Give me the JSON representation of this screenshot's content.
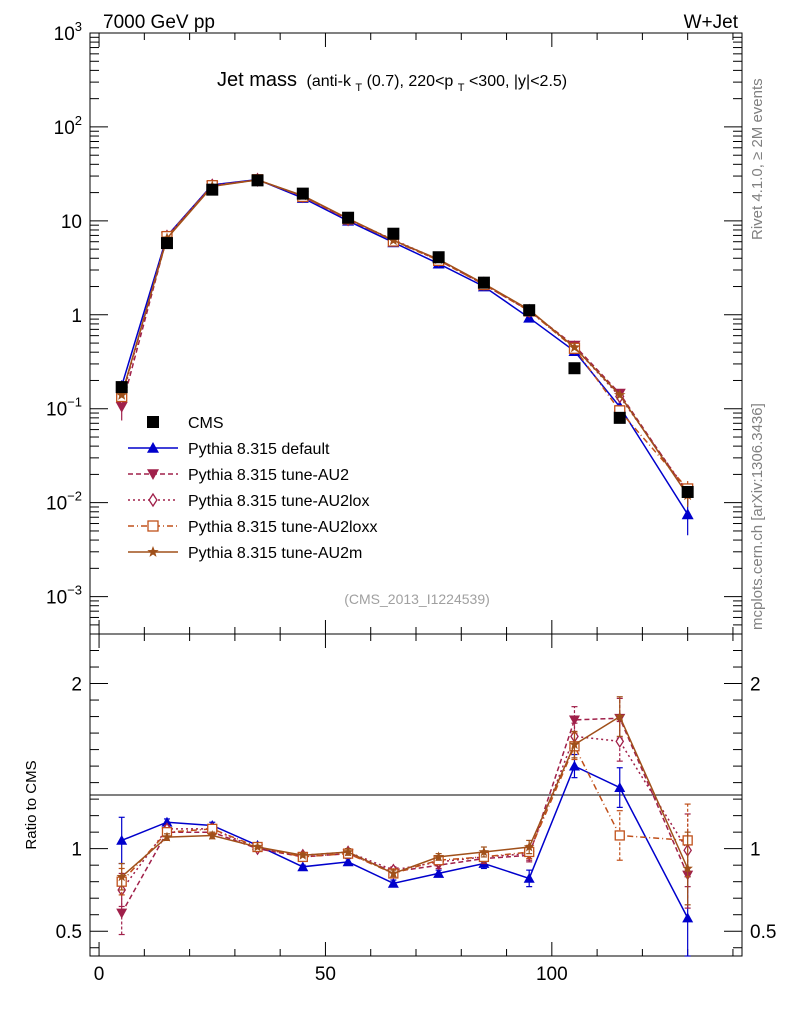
{
  "header": {
    "energy_label": "7000 GeV pp",
    "process_label": "W+Jet"
  },
  "side_labels": {
    "rivet": "Rivet 4.1.0, ≥ 2M events",
    "mcplots": "mcplots.cern.ch [arXiv:1306.3436]"
  },
  "chart_data": {
    "type": "scatter",
    "title": {
      "main": "Jet mass",
      "sub_before_kt": "(anti-k",
      "kt_sub": "T",
      "sub_mid": "(0.7), 220<p",
      "pt_sub": "T",
      "sub_after": "<300, |y|<2.5)"
    },
    "analysis_label": "(CMS_2013_I1224539)",
    "xlabel": "",
    "ylabel_ratio": "Ratio to CMS",
    "xlim": [
      -2,
      142
    ],
    "ylim_main": [
      0.0004,
      1000
    ],
    "ylog": true,
    "ylim_ratio": [
      0.35,
      2.3
    ],
    "x_ticks": [
      {
        "value": 0,
        "label": "0"
      },
      {
        "value": 50,
        "label": "50"
      },
      {
        "value": 100,
        "label": "100"
      }
    ],
    "y_ticks_main": [
      {
        "value": 1000,
        "base": "10",
        "exp": "3"
      },
      {
        "value": 100,
        "base": "10",
        "exp": "2"
      },
      {
        "value": 10,
        "base": "10",
        "exp": ""
      },
      {
        "value": 1,
        "base": "1",
        "exp": ""
      },
      {
        "value": 0.1,
        "base": "10",
        "exp": "−1"
      },
      {
        "value": 0.01,
        "base": "10",
        "exp": "−2"
      },
      {
        "value": 0.001,
        "base": "10",
        "exp": "−3"
      }
    ],
    "y_ticks_ratio": [
      {
        "value": 2,
        "label": "2"
      },
      {
        "value": 1,
        "label": "1"
      },
      {
        "value": 0.5,
        "label": "0.5"
      }
    ],
    "x": [
      5,
      15,
      25,
      35,
      45,
      55,
      65,
      75,
      85,
      95,
      105,
      115,
      130
    ],
    "legend_position": "left",
    "series": [
      {
        "name": "CMS",
        "color": "#000000",
        "marker": "square",
        "dash": "",
        "is_data": true,
        "values": [
          0.17,
          5.8,
          21.5,
          27,
          19.5,
          10.8,
          7.3,
          4.1,
          2.2,
          1.12,
          0.27,
          0.08,
          0.013
        ]
      },
      {
        "name": "Pythia 8.315 default",
        "color": "#0000cc",
        "marker": "triangle-up",
        "dash": "",
        "values": [
          0.175,
          6.9,
          24.2,
          27.5,
          17.5,
          10.0,
          5.9,
          3.5,
          2.0,
          0.93,
          0.41,
          0.105,
          0.0075
        ],
        "errors_main": [
          0,
          0,
          0,
          0,
          0,
          0,
          0,
          0,
          0,
          0,
          0,
          0,
          0.003
        ],
        "ratio": [
          1.05,
          1.16,
          1.14,
          1.02,
          0.89,
          0.92,
          0.79,
          0.85,
          0.91,
          0.82,
          1.5,
          1.37,
          0.58
        ],
        "ratio_err": [
          0.14,
          0.02,
          0.02,
          0.01,
          0.01,
          0.02,
          0.02,
          0.02,
          0.03,
          0.05,
          0.07,
          0.12,
          0.25
        ]
      },
      {
        "name": "Pythia 8.315 tune-AU2",
        "color": "#a0204a",
        "marker": "triangle-down",
        "dash": "5,3",
        "values": [
          0.105,
          6.7,
          23.5,
          27.3,
          18.3,
          10.3,
          6.2,
          3.8,
          2.1,
          1.1,
          0.47,
          0.145,
          0.0125
        ],
        "errors_main": [
          0.03,
          0,
          0,
          0,
          0,
          0,
          0,
          0,
          0,
          0,
          0,
          0,
          0.003
        ],
        "ratio": [
          0.61,
          1.1,
          1.1,
          1.0,
          0.95,
          0.97,
          0.86,
          0.9,
          0.94,
          0.96,
          1.78,
          1.79,
          0.84
        ],
        "ratio_err": [
          0.13,
          0.02,
          0.02,
          0.01,
          0.01,
          0.02,
          0.02,
          0.02,
          0.03,
          0.04,
          0.08,
          0.12,
          0.2
        ]
      },
      {
        "name": "Pythia 8.315 tune-AU2lox",
        "color": "#a0204a",
        "marker": "diamond",
        "dash": "2,3",
        "values": [
          0.13,
          6.8,
          23.8,
          27.4,
          18.4,
          10.4,
          6.3,
          3.85,
          2.15,
          1.1,
          0.45,
          0.135,
          0.013
        ],
        "errors_main": [
          0,
          0,
          0,
          0,
          0,
          0,
          0,
          0,
          0,
          0,
          0,
          0,
          0.003
        ],
        "ratio": [
          0.75,
          1.12,
          1.12,
          1.0,
          0.96,
          0.98,
          0.87,
          0.92,
          0.95,
          0.97,
          1.68,
          1.65,
          0.99
        ],
        "ratio_err": [
          0.1,
          0.02,
          0.02,
          0.01,
          0.01,
          0.02,
          0.02,
          0.02,
          0.03,
          0.04,
          0.08,
          0.12,
          0.22
        ]
      },
      {
        "name": "Pythia 8.315 tune-AU2loxx",
        "color": "#c0501a",
        "marker": "open-square",
        "dash": "6,3,1,3",
        "values": [
          0.135,
          6.8,
          23.7,
          27.4,
          18.2,
          10.5,
          6.1,
          3.8,
          2.1,
          1.1,
          0.44,
          0.095,
          0.014
        ],
        "errors_main": [
          0,
          0,
          0,
          0,
          0,
          0,
          0,
          0,
          0,
          0,
          0,
          0,
          0.003
        ],
        "ratio": [
          0.8,
          1.1,
          1.12,
          1.01,
          0.95,
          0.97,
          0.85,
          0.93,
          0.95,
          0.98,
          1.62,
          1.08,
          1.05
        ],
        "ratio_err": [
          0.08,
          0.02,
          0.02,
          0.01,
          0.01,
          0.02,
          0.02,
          0.02,
          0.03,
          0.04,
          0.08,
          0.15,
          0.22
        ]
      },
      {
        "name": "Pythia 8.315 tune-AU2m",
        "color": "#a0501a",
        "marker": "star",
        "dash": "",
        "values": [
          0.14,
          6.5,
          23.3,
          27.3,
          18.6,
          10.6,
          6.2,
          3.9,
          2.15,
          1.13,
          0.45,
          0.14,
          0.012
        ],
        "errors_main": [
          0,
          0,
          0,
          0,
          0,
          0,
          0,
          0,
          0,
          0,
          0,
          0,
          0.003
        ],
        "ratio": [
          0.83,
          1.07,
          1.08,
          1.01,
          0.96,
          0.98,
          0.85,
          0.95,
          0.98,
          1.01,
          1.63,
          1.8,
          0.88
        ],
        "ratio_err": [
          0.08,
          0.02,
          0.02,
          0.01,
          0.01,
          0.02,
          0.02,
          0.02,
          0.03,
          0.04,
          0.08,
          0.12,
          0.22
        ]
      }
    ]
  }
}
